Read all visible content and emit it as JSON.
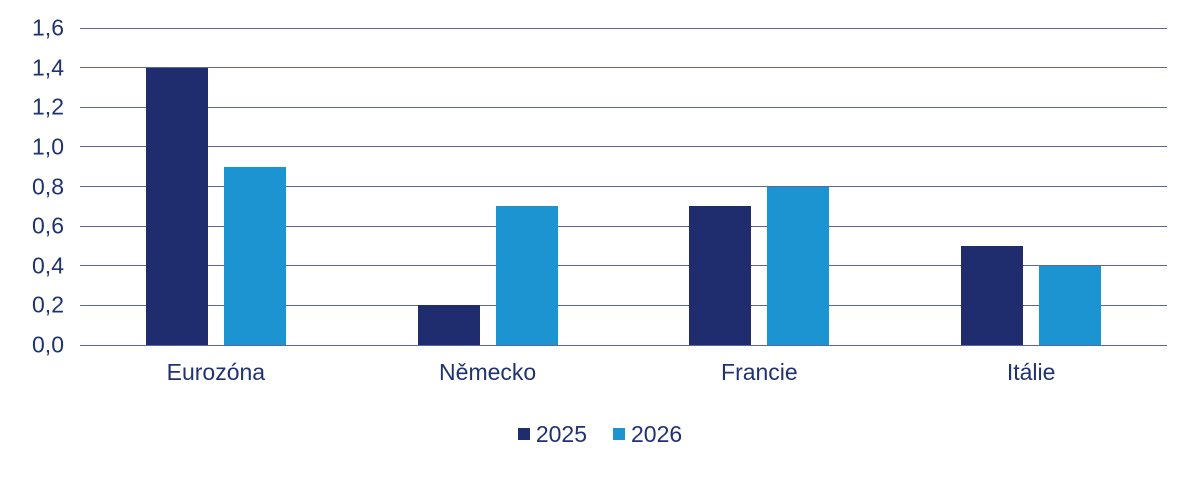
{
  "chart_data": {
    "type": "bar",
    "title": "",
    "xlabel": "",
    "ylabel": "",
    "categories": [
      "Eurozóna",
      "Německo",
      "Francie",
      "Itálie"
    ],
    "series": [
      {
        "name": "2025",
        "color": "#1f2d6e",
        "values": [
          1.4,
          0.2,
          0.7,
          0.5
        ]
      },
      {
        "name": "2026",
        "color": "#1b94d1",
        "values": [
          0.9,
          0.7,
          0.8,
          0.4
        ]
      }
    ],
    "ylim": [
      0,
      1.6
    ],
    "ytick_step": 0.2,
    "ytick_labels": [
      "0,0",
      "0,2",
      "0,4",
      "0,6",
      "0,8",
      "1,0",
      "1,2",
      "1,4",
      "1,6"
    ],
    "grid": "horizontal",
    "gridline_color": "#5a679e",
    "text_color": "#203370",
    "legend_position": "bottom"
  }
}
